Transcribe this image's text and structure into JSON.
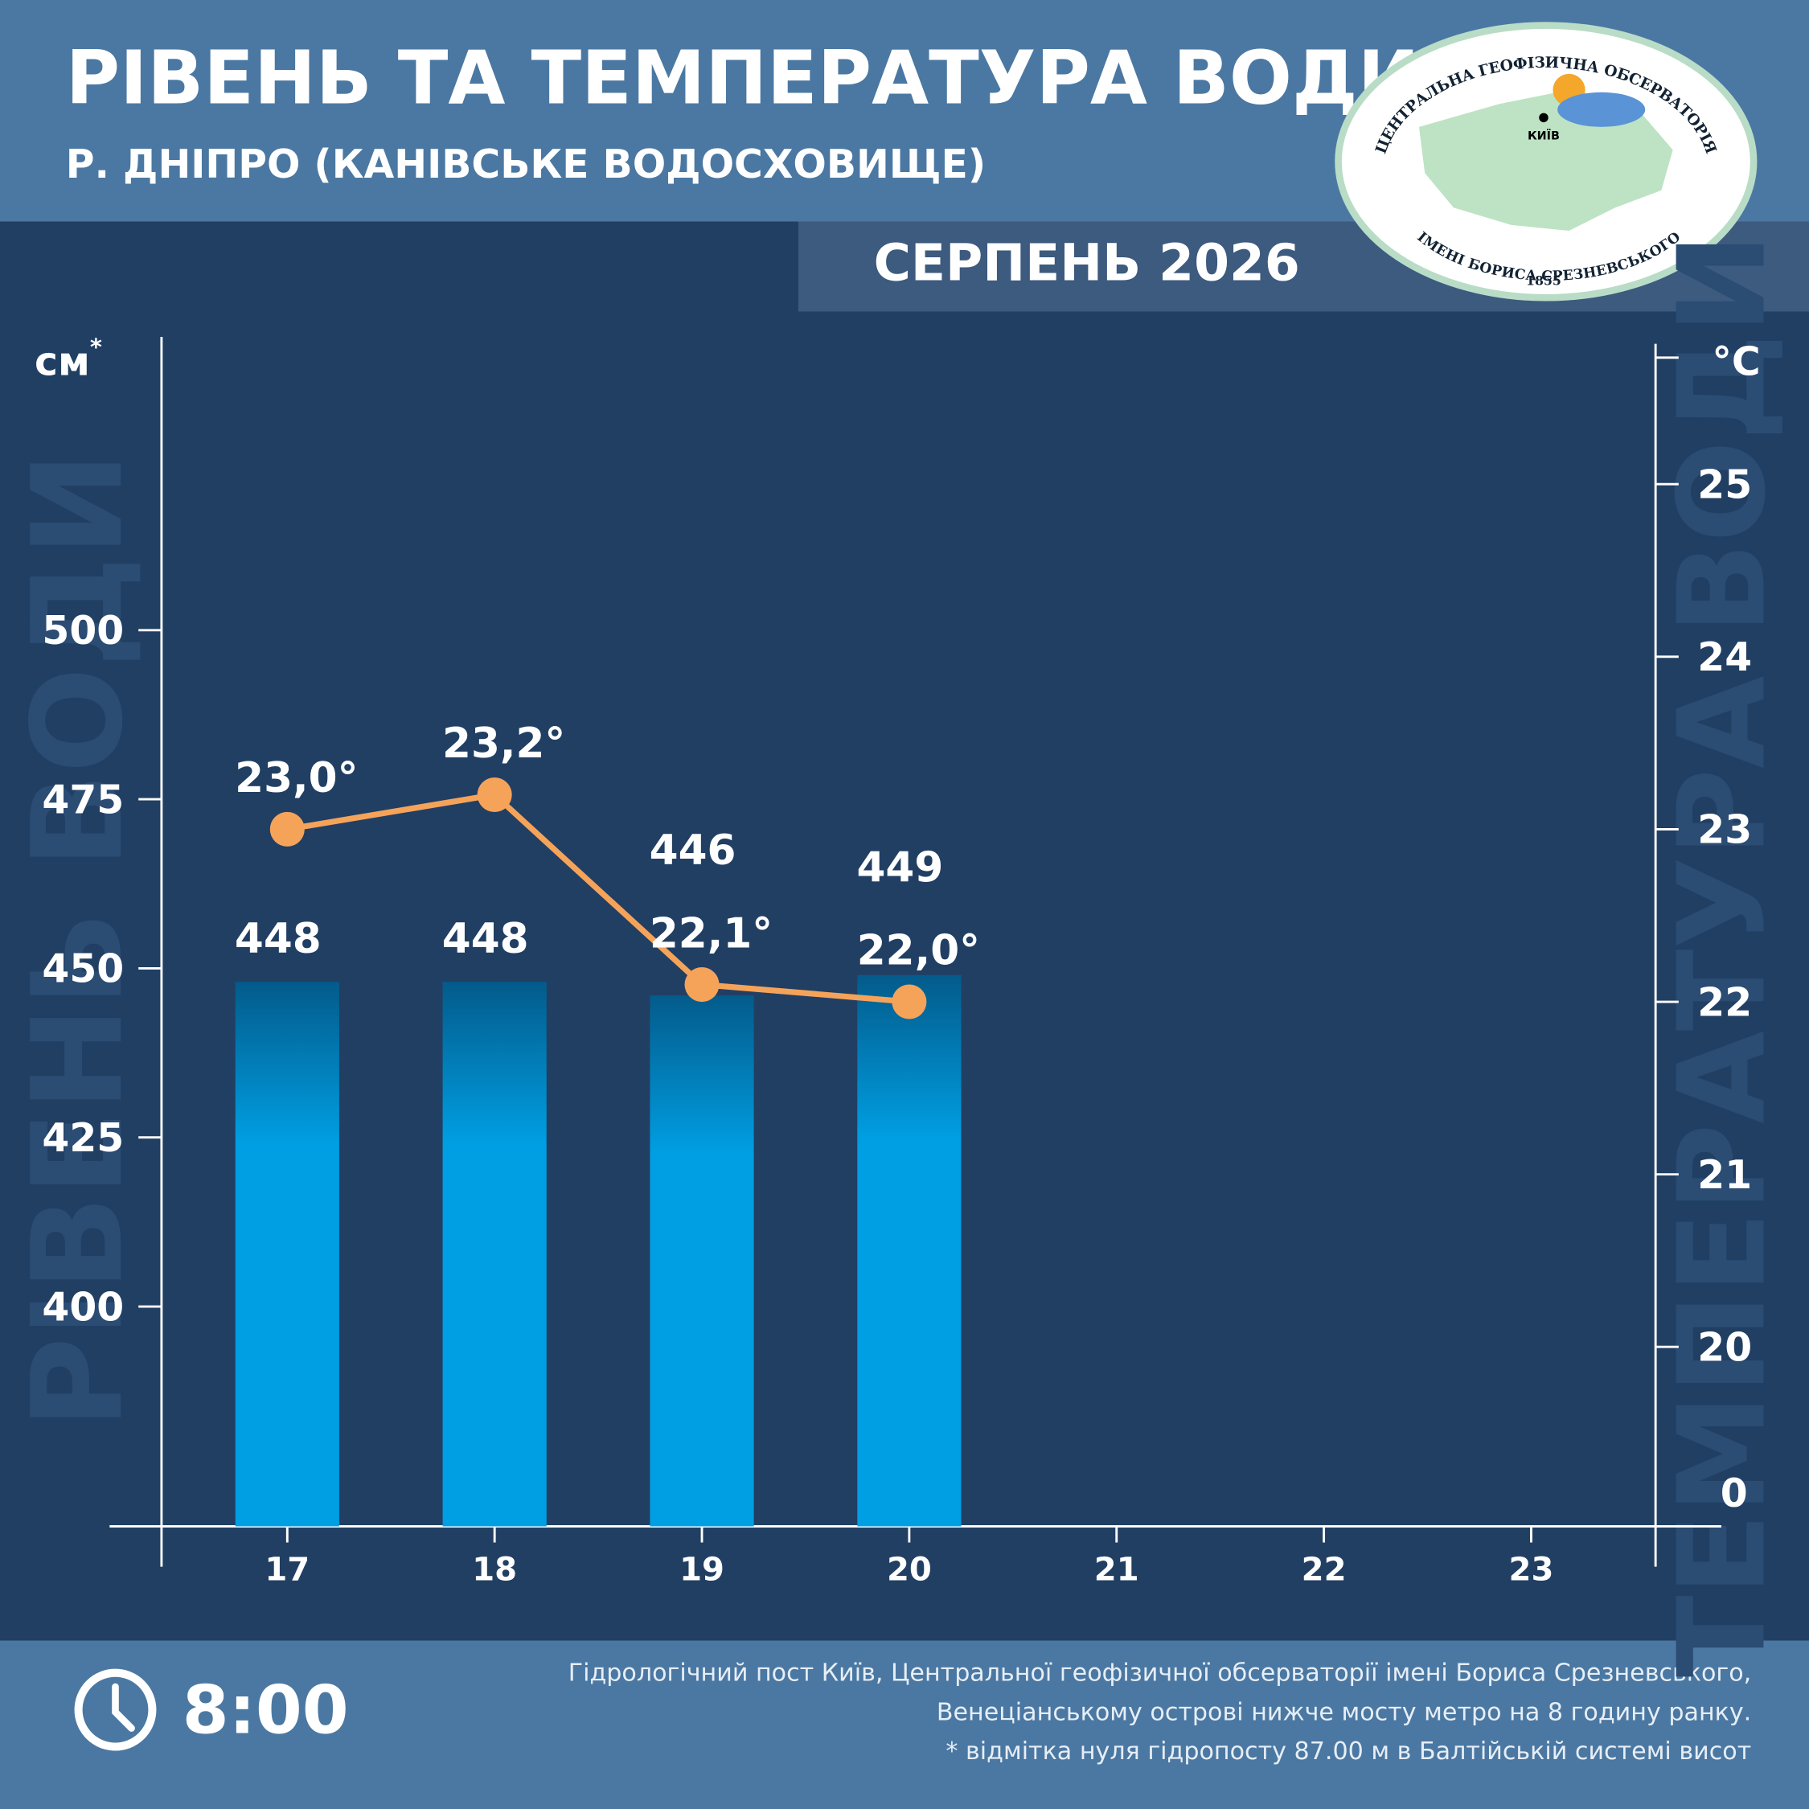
{
  "chart_data": {
    "type": "bar",
    "title": "РІВЕНЬ ТА ТЕМПЕРАТУРА ВОДИ",
    "subtitle": "Р. ДНІПРО (КАНІВСЬКЕ ВОДОСХОВИЩЕ)",
    "period": "СЕРПЕНЬ 2026",
    "y_unit": "см",
    "y_unit_mark": "*",
    "y2_unit": "°C",
    "y2_origin_label": "0",
    "categories": [
      "17",
      "18",
      "19",
      "20",
      "21",
      "22",
      "23"
    ],
    "series": [
      {
        "name": "РІВЕНЬ ВОДИ",
        "type": "bar",
        "color": "#009fe3",
        "color_top": "#035b8b",
        "values": [
          448,
          448,
          446,
          449,
          null,
          null,
          null
        ]
      },
      {
        "name": "ТЕМПЕРАТУРА ВОДИ",
        "type": "line",
        "axis": "y2",
        "color": "#f6a35a",
        "values": [
          23.0,
          23.2,
          22.1,
          22.0,
          null,
          null,
          null
        ],
        "value_labels": [
          "23,0°",
          "23,2°",
          "22,1°",
          "22,0°",
          null,
          null,
          null
        ]
      }
    ],
    "ylim": [
      367.5,
      542
    ],
    "yticks": [
      400,
      425,
      450,
      475,
      500
    ],
    "y2lim": [
      18.96,
      25.8
    ],
    "y2ticks": [
      20,
      21,
      22,
      23,
      24,
      25
    ]
  },
  "logo": {
    "top": "ЦЕНТРАЛЬНА ГЕОФІЗИЧНА ОБСЕРВАТОРІЯ",
    "bottom": "ІМЕНІ БОРИСА СРЕЗНЕВСЬКОГО",
    "year": "1855",
    "city": "КИЇВ"
  },
  "footer": {
    "time": "8:00",
    "notes": [
      "Гідрологічний пост Київ, Центральної геофізичної обсерваторії імені Бориса Срезневського,",
      "Венеціанському острові нижче мосту метро  на 8 годину ранку.",
      "* відмітка нуля гідропосту 87.00 м в Балтійській системі висот"
    ]
  }
}
